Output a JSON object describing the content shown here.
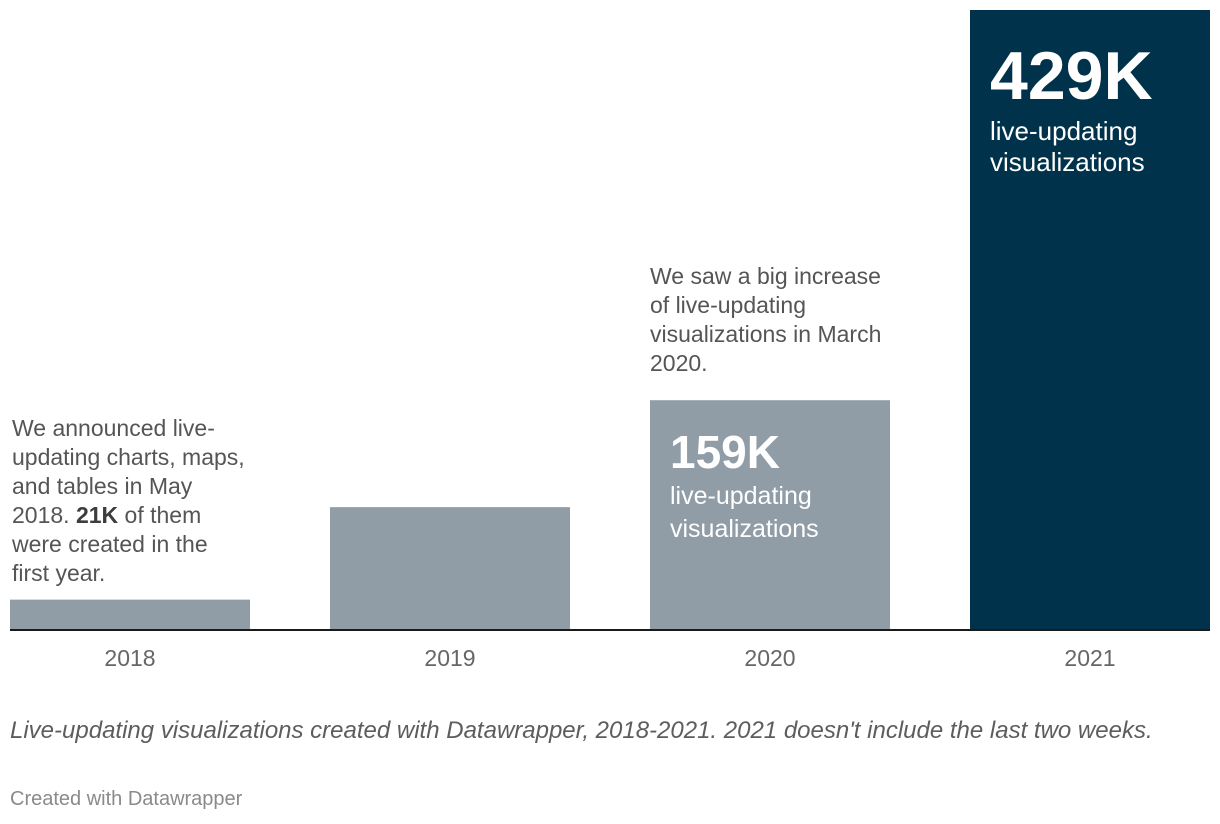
{
  "chart_data": {
    "type": "bar",
    "categories": [
      "2018",
      "2019",
      "2020",
      "2021"
    ],
    "values": [
      21,
      85,
      159,
      429
    ],
    "units": "K live-updating visualizations",
    "ylim": [
      0,
      429
    ],
    "highlight": "2021",
    "colors": {
      "default": "#909ca6",
      "highlight": "#00334b"
    },
    "labels": {
      "2020": {
        "value": "159K",
        "text": "live-updating visualizations"
      },
      "2021": {
        "value": "429K",
        "text": "live-updating visualizations"
      }
    }
  },
  "annotations": {
    "a2018": {
      "text_before": "We announced live-updating charts, maps, and tables in May 2018.",
      "bold": "21K",
      "text_after": "of them were created in the first year."
    },
    "a2020": "We saw a big increase of live-updating visualizations in March 2020."
  },
  "caption": "Live-updating visualizations created with Datawrapper, 2018-2021. 2021 doesn't include the last two weeks.",
  "credit": "Created with Datawrapper"
}
